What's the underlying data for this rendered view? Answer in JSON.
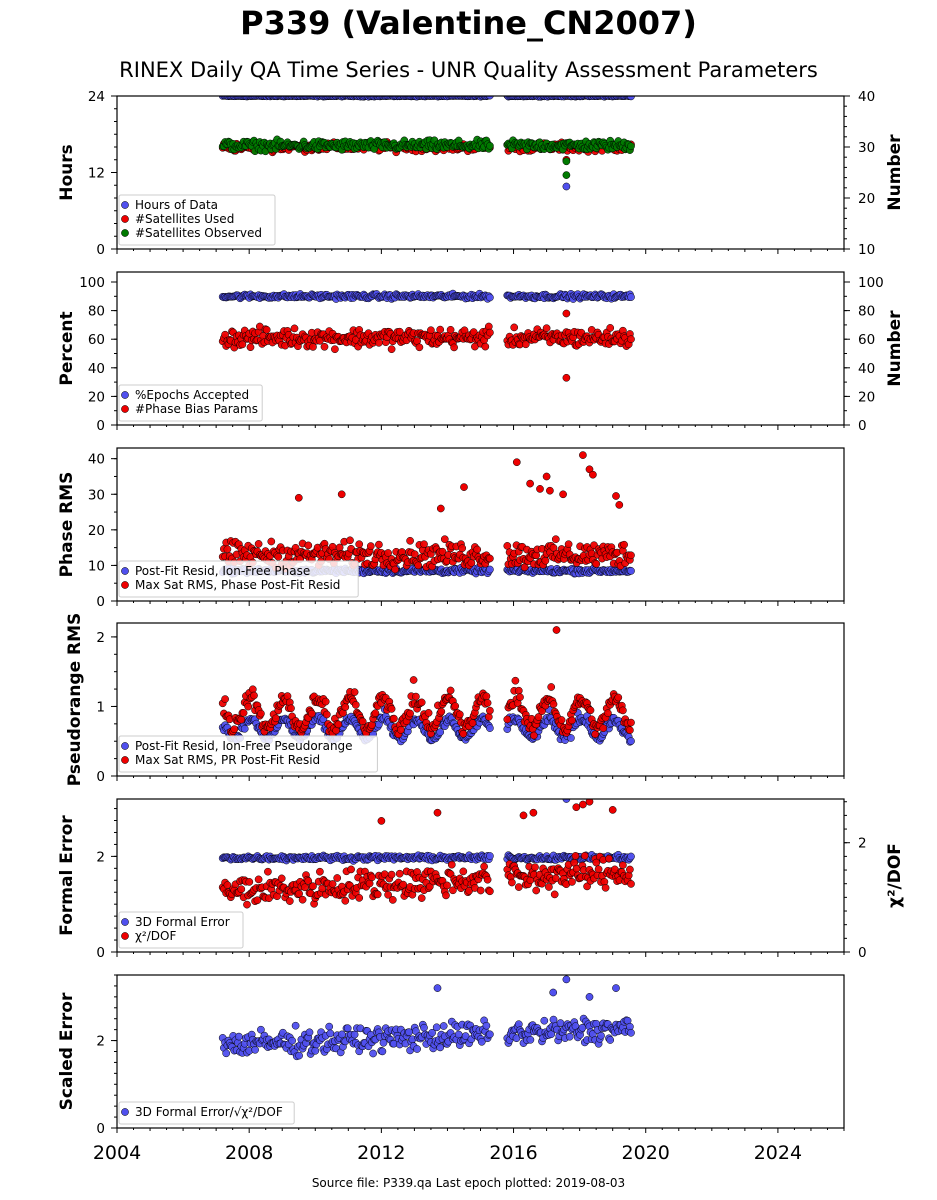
{
  "title": "P339 (Valentine_CN2007)",
  "subtitle": "RINEX Daily QA Time Series - UNR Quality Assessment Parameters",
  "footer": "Source file: P339.qa Last epoch plotted: 2019-08-03",
  "colors": {
    "blue": "#5050ee",
    "red": "#ee0000",
    "green": "#007a00"
  },
  "chart_data": {
    "type": "scatter",
    "x_range": [
      2004,
      2026
    ],
    "x_ticks": [
      2004,
      2008,
      2012,
      2016,
      2020,
      2024
    ],
    "data_start": 2007.2,
    "gap": [
      2015.3,
      2015.8
    ],
    "data_end": 2019.59,
    "panels": [
      {
        "ylabel": "Hours",
        "y_range": [
          0,
          24
        ],
        "y_ticks": [
          0,
          12,
          24
        ],
        "y2label": "Number",
        "y2_range": [
          10,
          40
        ],
        "y2_ticks": [
          10,
          20,
          30,
          40
        ],
        "legend": [
          "Hours of Data",
          "#Satellites Used",
          "#Satellites Observed"
        ],
        "series": [
          {
            "name": "Hours of Data",
            "color": "blue",
            "axis": "left",
            "base": 24,
            "noise": 0.08,
            "outliers": [
              [
                2017.6,
                9.8
              ]
            ]
          },
          {
            "name": "#Satellites Used",
            "color": "red",
            "axis": "right",
            "base": 30,
            "noise": 0.7,
            "outliers": [
              [
                2017.6,
                27.5
              ],
              [
                2009.7,
                30.2
              ],
              [
                2015.2,
                30.8
              ]
            ]
          },
          {
            "name": "#Satellites Observed",
            "color": "green",
            "axis": "right",
            "base": 30.3,
            "noise": 0.8,
            "outliers": [
              [
                2017.6,
                24.5
              ],
              [
                2017.6,
                27.2
              ]
            ]
          }
        ]
      },
      {
        "ylabel": "Percent",
        "y_range": [
          0,
          107
        ],
        "y_ticks": [
          0,
          20,
          40,
          60,
          80,
          100
        ],
        "y2label": "Number",
        "y2_range": [
          0,
          107
        ],
        "y2_ticks": [
          0,
          20,
          40,
          60,
          80,
          100
        ],
        "legend": [
          "%Epochs Accepted",
          "#Phase Bias Params"
        ],
        "series": [
          {
            "name": "%Epochs Accepted",
            "color": "blue",
            "axis": "left",
            "base": 90,
            "noise": 1.3,
            "outliers": []
          },
          {
            "name": "#Phase Bias Params",
            "color": "red",
            "axis": "right",
            "base": 61,
            "noise": 5.5,
            "outliers": [
              [
                2017.6,
                33
              ],
              [
                2017.6,
                78
              ]
            ]
          }
        ]
      },
      {
        "ylabel": "Phase RMS",
        "y_range": [
          0,
          43
        ],
        "y_ticks": [
          0,
          10,
          20,
          30,
          40
        ],
        "legend": [
          "Post-Fit Resid, Ion-Free Phase",
          "Max Sat RMS, Phase Post-Fit Resid"
        ],
        "series": [
          {
            "name": "Post-Fit Resid, Ion-Free Phase",
            "color": "blue",
            "axis": "left",
            "base": 8.5,
            "noise": 0.6,
            "outliers": []
          },
          {
            "name": "Max Sat RMS, Phase Post-Fit Resid",
            "color": "red",
            "axis": "left",
            "base": 13,
            "noise": 3,
            "outliers": [
              [
                2018.1,
                41
              ],
              [
                2016.1,
                39
              ],
              [
                2018.3,
                37
              ],
              [
                2018.4,
                35.5
              ],
              [
                2017.0,
                35
              ],
              [
                2014.5,
                32
              ],
              [
                2016.5,
                33
              ],
              [
                2016.8,
                31.5
              ],
              [
                2017.1,
                31
              ],
              [
                2017.5,
                30
              ],
              [
                2010.8,
                30
              ],
              [
                2009.5,
                29
              ],
              [
                2019.1,
                29.5
              ],
              [
                2019.2,
                27
              ],
              [
                2013.8,
                26
              ]
            ]
          }
        ]
      },
      {
        "ylabel": "Pseudorange RMS",
        "y_range": [
          0,
          2.2
        ],
        "y_ticks": [
          0,
          1,
          2
        ],
        "legend": [
          "Post-Fit Resid, Ion-Free Pseudorange",
          "Max Sat RMS, PR Post-Fit Resid"
        ],
        "series": [
          {
            "name": "Post-Fit Resid, Ion-Free Pseudorange",
            "color": "blue",
            "axis": "left",
            "base": 0.68,
            "noise": 0.05,
            "seasonal": 0.14,
            "outliers": []
          },
          {
            "name": "Max Sat RMS, PR Post-Fit Resid",
            "color": "red",
            "axis": "left",
            "base": 0.9,
            "noise": 0.1,
            "seasonal": 0.22,
            "outliers": [
              [
                2017.3,
                2.1
              ]
            ]
          }
        ]
      },
      {
        "ylabel": "Formal Error",
        "y_range": [
          0,
          3.2
        ],
        "y_ticks": [
          0,
          2
        ],
        "y2label": "χ²/DOF",
        "y2_range": [
          0,
          2.8
        ],
        "y2_ticks": [
          0,
          2
        ],
        "legend": [
          "3D Formal Error",
          "χ²/DOF"
        ],
        "series": [
          {
            "name": "3D Formal Error",
            "color": "blue",
            "axis": "left",
            "base": 1.97,
            "noise": 0.04,
            "outliers": [
              [
                2017.6,
                3.2
              ]
            ]
          },
          {
            "name": "χ²/DOF",
            "color": "red",
            "axis": "right",
            "base": 1.1,
            "noise": 0.25,
            "trend": 0.03,
            "outliers": [
              [
                2018.3,
                2.75
              ],
              [
                2018.1,
                2.7
              ],
              [
                2016.3,
                2.5
              ],
              [
                2013.7,
                2.55
              ],
              [
                2017.9,
                2.65
              ],
              [
                2019.0,
                2.6
              ],
              [
                2012.0,
                2.4
              ],
              [
                2016.6,
                2.55
              ]
            ]
          }
        ]
      },
      {
        "ylabel": "Scaled Error",
        "y_range": [
          0,
          3.5
        ],
        "y_ticks": [
          0,
          2
        ],
        "legend": [
          "3D Formal Error/√χ²/DOF"
        ],
        "series": [
          {
            "name": "3D Formal Error/√χ²/DOF",
            "color": "blue",
            "axis": "left",
            "base": 1.9,
            "noise": 0.25,
            "trend": 0.03,
            "outliers": [
              [
                2017.6,
                3.4
              ],
              [
                2019.1,
                3.2
              ],
              [
                2013.7,
                3.2
              ],
              [
                2017.2,
                3.1
              ],
              [
                2018.3,
                3.0
              ]
            ]
          }
        ]
      }
    ]
  }
}
